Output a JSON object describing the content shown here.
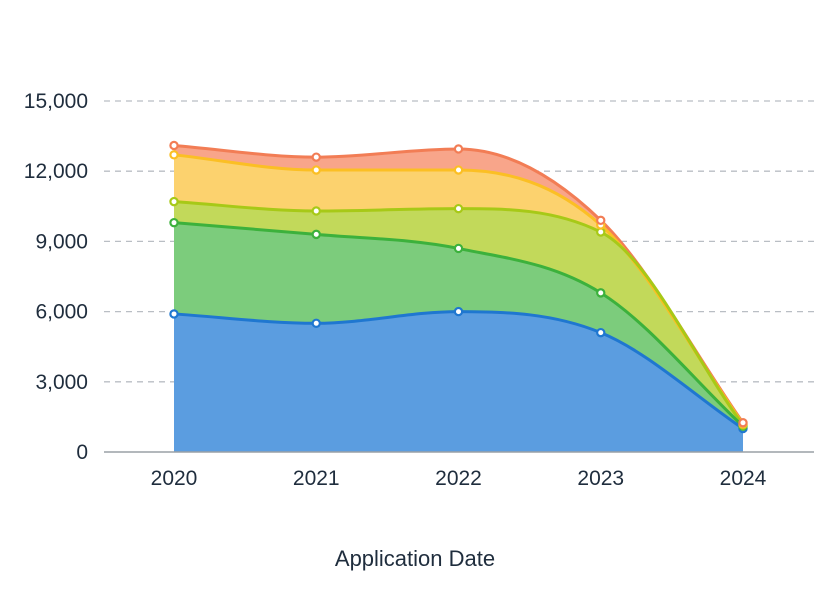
{
  "chart_data": {
    "type": "area",
    "stacked": true,
    "smooth": true,
    "title": "",
    "xlabel": "Application Date",
    "ylabel": "",
    "categories": [
      "2020",
      "2021",
      "2022",
      "2023",
      "2024"
    ],
    "ylim": [
      0,
      15000
    ],
    "yticks": [
      0,
      3000,
      6000,
      9000,
      12000,
      15000
    ],
    "ytick_labels": [
      "0",
      "3,000",
      "6,000",
      "9,000",
      "12,000",
      "15,000"
    ],
    "grid": true,
    "legend": "none",
    "series": [
      {
        "color": "#1f77d0",
        "fill": "#5b9de0",
        "cumulative": [
          5900,
          5500,
          6000,
          5100,
          1000
        ]
      },
      {
        "color": "#3cb13c",
        "fill": "#7ccc7c",
        "cumulative": [
          9800,
          9300,
          8700,
          6800,
          1100
        ]
      },
      {
        "color": "#a7c917",
        "fill": "#c2d95a",
        "cumulative": [
          10700,
          10300,
          10400,
          9400,
          1150
        ]
      },
      {
        "color": "#fbbf24",
        "fill": "#fcd26e",
        "cumulative": [
          12700,
          12050,
          12050,
          9700,
          1200
        ]
      },
      {
        "color": "#f27d55",
        "fill": "#f8a58a",
        "cumulative": [
          13100,
          12600,
          12950,
          9900,
          1250
        ]
      }
    ]
  }
}
